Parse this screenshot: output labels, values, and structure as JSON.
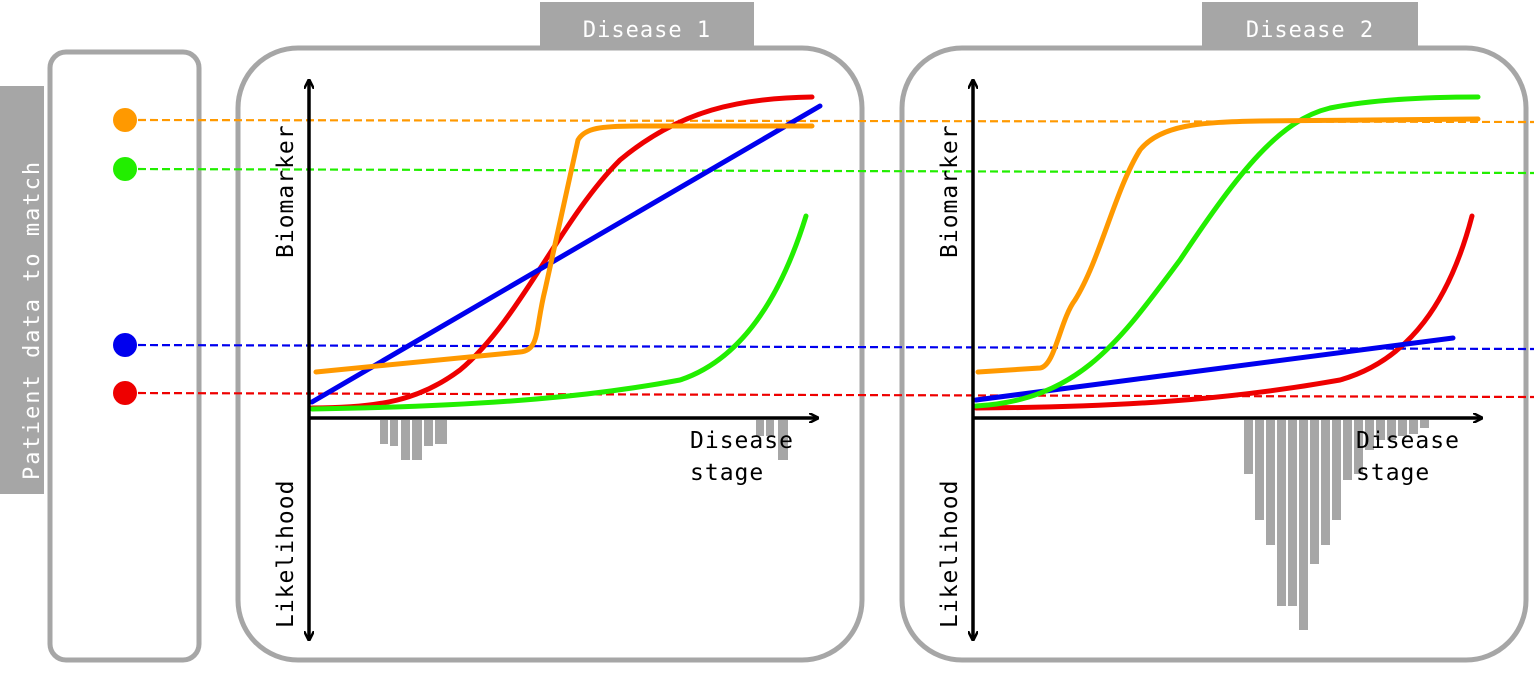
{
  "side_label": "Patient data to match",
  "panels": [
    {
      "title": "Disease 1",
      "y_axis_top": "Biomarker",
      "y_axis_bottom": "Likelihood",
      "x_axis_line1": "Disease",
      "x_axis_line2": "stage"
    },
    {
      "title": "Disease 2",
      "y_axis_top": "Biomarker",
      "y_axis_bottom": "Likelihood",
      "x_axis_line1": "Disease",
      "x_axis_line2": "stage"
    }
  ],
  "colors": {
    "orange": "#ff9900",
    "green": "#22ee00",
    "blue": "#0000ee",
    "red": "#ee0000",
    "histogram": "#a6a6a6",
    "frame": "#a6a6a6"
  },
  "patient_markers": [
    "orange",
    "green",
    "blue",
    "red"
  ]
}
